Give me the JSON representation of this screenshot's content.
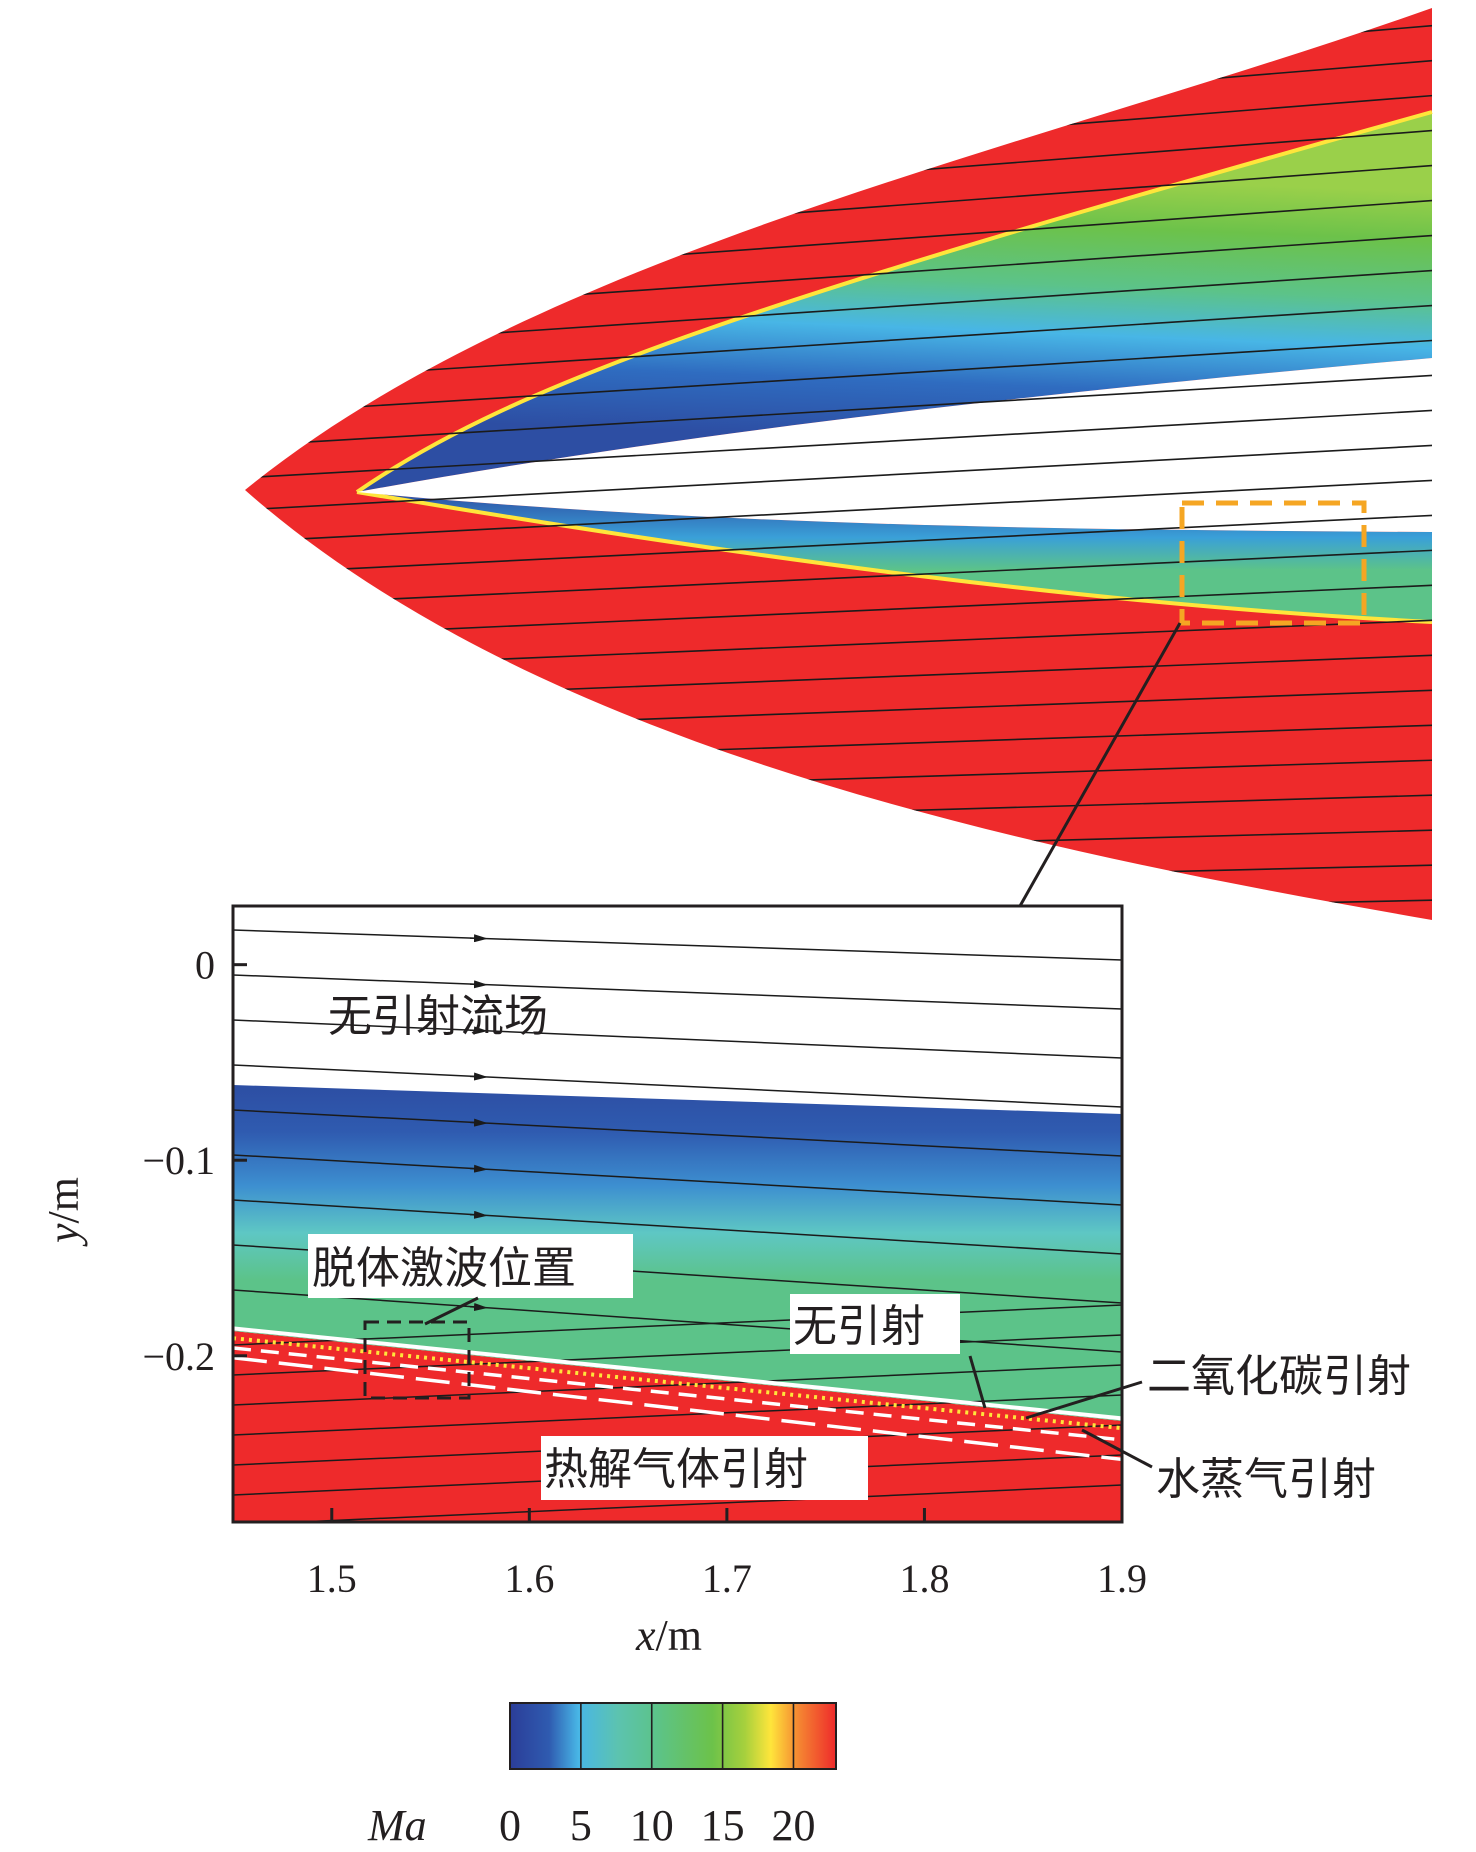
{
  "colors": {
    "red": "#ee2a2b",
    "green": "#6cc24a",
    "teal": "#5cc389",
    "cyan": "#48b6e6",
    "blue": "#2d4ea3",
    "yellow": "#ffe53b",
    "orange_box": "#f5a623"
  },
  "chart_data": {
    "type": "heatmap",
    "quantity": "Ma",
    "inset": {
      "annotation_title": "无引射流场",
      "xlabel_italic": "x",
      "xlabel_unit": "/m",
      "ylabel_italic": "y",
      "ylabel_unit": "/m",
      "xlim": [
        1.45,
        1.9
      ],
      "ylim": [
        -0.285,
        0.03
      ],
      "x_ticks": [
        1.5,
        1.6,
        1.7,
        1.8,
        1.9
      ],
      "x_tick_labels": [
        "1.5",
        "1.6",
        "1.7",
        "1.8",
        "1.9"
      ],
      "y_ticks": [
        0,
        -0.1,
        -0.2
      ],
      "y_tick_labels": [
        "0",
        "−0.1",
        "−0.2"
      ],
      "series": [
        {
          "name": "无引射",
          "style": "solid",
          "x": [
            1.45,
            1.9
          ],
          "y": [
            -0.186,
            -0.232
          ]
        },
        {
          "name": "二氧化碳引射",
          "style": "dotted",
          "x": [
            1.45,
            1.9
          ],
          "y": [
            -0.191,
            -0.237
          ]
        },
        {
          "name": "水蒸气引射",
          "style": "dash",
          "x": [
            1.45,
            1.9
          ],
          "y": [
            -0.196,
            -0.243
          ]
        },
        {
          "name": "热解气体引射",
          "style": "long-dash",
          "x": [
            1.45,
            1.9
          ],
          "y": [
            -0.201,
            -0.253
          ]
        }
      ],
      "shock_location_label": "脱体激波位置"
    },
    "colorbar": {
      "label": "Ma",
      "ticks": [
        0,
        5,
        10,
        15,
        20
      ],
      "tick_labels": [
        "0",
        "5",
        "10",
        "15",
        "20"
      ],
      "range": [
        0,
        23
      ]
    }
  }
}
